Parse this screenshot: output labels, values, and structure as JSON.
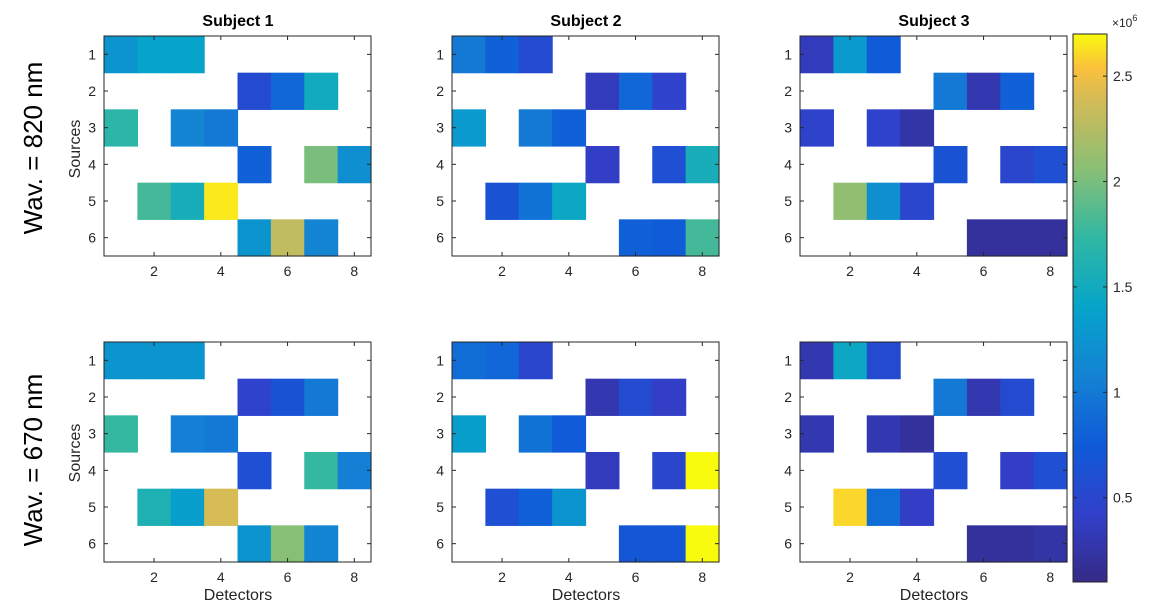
{
  "figure": {
    "row_labels": [
      "Wav. = 820 nm",
      "Wav. = 670 nm"
    ],
    "column_titles": [
      "Subject 1",
      "Subject 2",
      "Subject 3"
    ],
    "xlabel": "Detectors",
    "ylabel": "Sources",
    "colorbar": {
      "multiplier_base": "×10",
      "multiplier_exp": "6",
      "ticks": [
        0.5,
        1,
        1.5,
        2,
        2.5
      ],
      "tick_labels": [
        "0.5",
        "1",
        "1.5",
        "2",
        "2.5"
      ],
      "range": [
        0.1,
        2.7
      ],
      "colormap": "parula"
    }
  },
  "chart_data": [
    {
      "type": "heatmap",
      "title": "Subject 1",
      "row_label": "Wav. = 820 nm",
      "xlabel": "",
      "ylabel": "Sources",
      "scale": "x10^6",
      "xticks": [
        2,
        4,
        6,
        8
      ],
      "yticks": [
        1,
        2,
        3,
        4,
        5,
        6
      ],
      "values": [
        [
          1.25,
          1.4,
          1.4,
          null,
          null,
          null,
          null,
          null
        ],
        [
          null,
          null,
          null,
          null,
          0.55,
          0.85,
          1.5,
          null
        ],
        [
          1.7,
          null,
          1.1,
          1.0,
          null,
          null,
          null,
          null
        ],
        [
          null,
          null,
          null,
          null,
          0.8,
          null,
          2.0,
          1.2
        ],
        [
          null,
          1.8,
          1.55,
          2.65,
          null,
          null,
          null,
          null
        ],
        [
          null,
          null,
          null,
          null,
          1.25,
          2.3,
          1.1,
          null
        ]
      ]
    },
    {
      "type": "heatmap",
      "title": "Subject 2",
      "row_label": "Wav. = 820 nm",
      "xlabel": "",
      "ylabel": "",
      "scale": "x10^6",
      "xticks": [
        2,
        4,
        6,
        8
      ],
      "yticks": [
        1,
        2,
        3,
        4,
        5,
        6
      ],
      "values": [
        [
          1.0,
          0.8,
          0.55,
          null,
          null,
          null,
          null,
          null
        ],
        [
          null,
          null,
          null,
          null,
          0.35,
          0.85,
          0.45,
          null
        ],
        [
          1.3,
          null,
          1.0,
          0.8,
          null,
          null,
          null,
          null
        ],
        [
          null,
          null,
          null,
          null,
          0.4,
          null,
          0.6,
          1.55
        ],
        [
          null,
          0.65,
          0.95,
          1.45,
          null,
          null,
          null,
          null
        ],
        [
          null,
          null,
          null,
          null,
          null,
          0.8,
          0.75,
          1.8
        ]
      ]
    },
    {
      "type": "heatmap",
      "title": "Subject 3",
      "row_label": "Wav. = 820 nm",
      "xlabel": "",
      "ylabel": "",
      "scale": "x10^6",
      "xticks": [
        2,
        4,
        6,
        8
      ],
      "yticks": [
        1,
        2,
        3,
        4,
        5,
        6
      ],
      "values": [
        [
          0.35,
          1.3,
          0.75,
          null,
          null,
          null,
          null,
          null
        ],
        [
          null,
          null,
          null,
          null,
          1.0,
          0.3,
          0.8,
          null
        ],
        [
          0.45,
          null,
          0.45,
          0.25,
          null,
          null,
          null,
          null
        ],
        [
          null,
          null,
          null,
          null,
          0.65,
          null,
          0.5,
          0.6
        ],
        [
          null,
          2.1,
          1.2,
          0.5,
          null,
          null,
          null,
          null
        ],
        [
          null,
          null,
          null,
          null,
          null,
          0.2,
          0.2,
          0.2
        ]
      ]
    },
    {
      "type": "heatmap",
      "title": "",
      "row_label": "Wav. = 670 nm",
      "xlabel": "Detectors",
      "ylabel": "Sources",
      "scale": "x10^6",
      "xticks": [
        2,
        4,
        6,
        8
      ],
      "yticks": [
        1,
        2,
        3,
        4,
        5,
        6
      ],
      "values": [
        [
          1.25,
          1.25,
          1.25,
          null,
          null,
          null,
          null,
          null
        ],
        [
          null,
          null,
          null,
          null,
          0.45,
          0.65,
          1.0,
          null
        ],
        [
          1.75,
          null,
          1.05,
          1.0,
          null,
          null,
          null,
          null
        ],
        [
          null,
          null,
          null,
          null,
          0.6,
          null,
          1.75,
          1.05
        ],
        [
          null,
          1.6,
          1.35,
          2.4,
          null,
          null,
          null,
          null
        ],
        [
          null,
          null,
          null,
          null,
          1.25,
          2.05,
          1.1,
          null
        ]
      ]
    },
    {
      "type": "heatmap",
      "title": "",
      "row_label": "Wav. = 670 nm",
      "xlabel": "Detectors",
      "ylabel": "",
      "scale": "x10^6",
      "xticks": [
        2,
        4,
        6,
        8
      ],
      "yticks": [
        1,
        2,
        3,
        4,
        5,
        6
      ],
      "values": [
        [
          0.9,
          0.85,
          0.5,
          null,
          null,
          null,
          null,
          null
        ],
        [
          null,
          null,
          null,
          null,
          0.3,
          0.55,
          0.4,
          null
        ],
        [
          1.35,
          null,
          0.95,
          0.75,
          null,
          null,
          null,
          null
        ],
        [
          null,
          null,
          null,
          null,
          0.35,
          null,
          0.5,
          2.7
        ],
        [
          null,
          0.6,
          0.8,
          1.25,
          null,
          null,
          null,
          null
        ],
        [
          null,
          null,
          null,
          null,
          null,
          0.7,
          0.7,
          2.7
        ]
      ]
    },
    {
      "type": "heatmap",
      "title": "",
      "row_label": "Wav. = 670 nm",
      "xlabel": "Detectors",
      "ylabel": "",
      "scale": "x10^6",
      "xticks": [
        2,
        4,
        6,
        8
      ],
      "yticks": [
        1,
        2,
        3,
        4,
        5,
        6
      ],
      "values": [
        [
          0.3,
          1.45,
          0.55,
          null,
          null,
          null,
          null,
          null
        ],
        [
          null,
          null,
          null,
          null,
          1.0,
          0.3,
          0.55,
          null
        ],
        [
          0.3,
          null,
          0.3,
          0.2,
          null,
          null,
          null,
          null
        ],
        [
          null,
          null,
          null,
          null,
          0.6,
          null,
          0.4,
          0.6
        ],
        [
          null,
          2.6,
          0.9,
          0.4,
          null,
          null,
          null,
          null
        ],
        [
          null,
          null,
          null,
          null,
          null,
          0.2,
          0.2,
          0.25
        ]
      ]
    }
  ]
}
